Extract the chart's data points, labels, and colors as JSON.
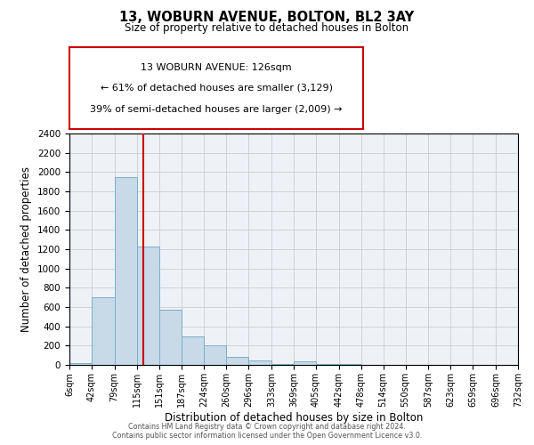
{
  "title": "13, WOBURN AVENUE, BOLTON, BL2 3AY",
  "subtitle": "Size of property relative to detached houses in Bolton",
  "xlabel": "Distribution of detached houses by size in Bolton",
  "ylabel": "Number of detached properties",
  "bin_edges": [
    6,
    42,
    79,
    115,
    151,
    187,
    224,
    260,
    296,
    333,
    369,
    405,
    442,
    478,
    514,
    550,
    587,
    623,
    659,
    696,
    732
  ],
  "bin_heights": [
    20,
    700,
    1950,
    1230,
    575,
    300,
    200,
    80,
    45,
    10,
    35,
    5,
    5,
    0,
    0,
    0,
    0,
    0,
    0,
    0
  ],
  "bar_color": "#c8d9e8",
  "bar_edgecolor": "#7aafc8",
  "vline_x": 126,
  "vline_color": "#cc0000",
  "annotation_line1": "13 WOBURN AVENUE: 126sqm",
  "annotation_line2": "← 61% of detached houses are smaller (3,129)",
  "annotation_line3": "39% of semi-detached houses are larger (2,009) →",
  "box_edgecolor": "#cc0000",
  "ylim": [
    0,
    2400
  ],
  "yticks": [
    0,
    200,
    400,
    600,
    800,
    1000,
    1200,
    1400,
    1600,
    1800,
    2000,
    2200,
    2400
  ],
  "tick_labels": [
    "6sqm",
    "42sqm",
    "79sqm",
    "115sqm",
    "151sqm",
    "187sqm",
    "224sqm",
    "260sqm",
    "296sqm",
    "333sqm",
    "369sqm",
    "405sqm",
    "442sqm",
    "478sqm",
    "514sqm",
    "550sqm",
    "587sqm",
    "623sqm",
    "659sqm",
    "696sqm",
    "732sqm"
  ],
  "grid_color": "#cccccc",
  "bg_color": "#eef2f7",
  "footer1": "Contains HM Land Registry data © Crown copyright and database right 2024.",
  "footer2": "Contains public sector information licensed under the Open Government Licence v3.0."
}
